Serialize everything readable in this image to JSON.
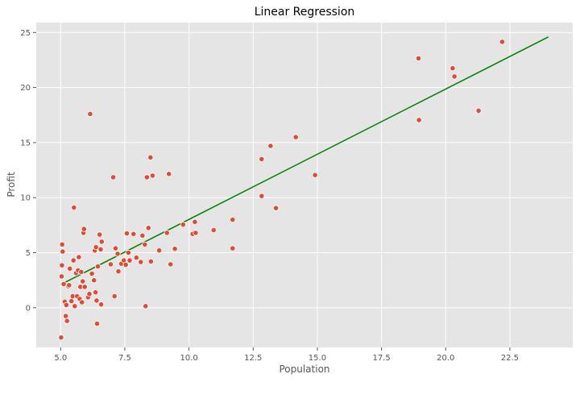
{
  "chart_data": {
    "type": "scatter",
    "title": "Linear Regression",
    "xlabel": "Population",
    "ylabel": "Profit",
    "xlim": [
      4.05,
      24.95
    ],
    "ylim": [
      -3.6,
      25.9
    ],
    "x_ticks": [
      5.0,
      7.5,
      10.0,
      12.5,
      15.0,
      17.5,
      20.0,
      22.5
    ],
    "x_tick_labels": [
      "5.0",
      "7.5",
      "10.0",
      "12.5",
      "15.0",
      "17.5",
      "20.0",
      "22.5"
    ],
    "y_ticks": [
      0,
      5,
      10,
      15,
      20,
      25
    ],
    "y_tick_labels": [
      "0",
      "5",
      "10",
      "15",
      "20",
      "25"
    ],
    "grid": true,
    "style": {
      "plot_background": "#e5e5e5",
      "grid_color": "#ffffff",
      "point_color": "#e24a33",
      "point_edge_color": "#ffffff",
      "line_color": "#008000"
    },
    "series": [
      {
        "type": "scatter",
        "points": [
          [
            5.02,
            -2.7
          ],
          [
            5.04,
            2.85
          ],
          [
            5.05,
            3.85
          ],
          [
            5.06,
            5.75
          ],
          [
            5.08,
            5.1
          ],
          [
            5.12,
            2.15
          ],
          [
            5.16,
            0.55
          ],
          [
            5.2,
            -0.75
          ],
          [
            5.22,
            0.25
          ],
          [
            5.25,
            -1.2
          ],
          [
            5.3,
            1.95
          ],
          [
            5.33,
            2.05
          ],
          [
            5.36,
            3.55
          ],
          [
            5.42,
            0.6
          ],
          [
            5.47,
            1.05
          ],
          [
            5.5,
            4.3
          ],
          [
            5.52,
            9.1
          ],
          [
            5.55,
            0.15
          ],
          [
            5.6,
            3.15
          ],
          [
            5.64,
            1.05
          ],
          [
            5.68,
            3.4
          ],
          [
            5.71,
            4.6
          ],
          [
            5.74,
            0.8
          ],
          [
            5.77,
            1.9
          ],
          [
            5.8,
            3.25
          ],
          [
            5.83,
            0.5
          ],
          [
            5.86,
            2.4
          ],
          [
            5.89,
            6.8
          ],
          [
            5.91,
            7.15
          ],
          [
            5.94,
            1.9
          ],
          [
            6.07,
            0.95
          ],
          [
            6.12,
            1.25
          ],
          [
            6.15,
            17.6
          ],
          [
            6.22,
            3.1
          ],
          [
            6.3,
            2.5
          ],
          [
            6.33,
            5.2
          ],
          [
            6.36,
            1.4
          ],
          [
            6.38,
            5.5
          ],
          [
            6.4,
            0.65
          ],
          [
            6.42,
            -1.45
          ],
          [
            6.45,
            3.75
          ],
          [
            6.52,
            6.65
          ],
          [
            6.56,
            5.3
          ],
          [
            6.58,
            0.3
          ],
          [
            6.6,
            6.0
          ],
          [
            6.95,
            3.95
          ],
          [
            7.05,
            11.85
          ],
          [
            7.1,
            1.05
          ],
          [
            7.14,
            5.4
          ],
          [
            7.22,
            4.9
          ],
          [
            7.25,
            3.3
          ],
          [
            7.36,
            4.0
          ],
          [
            7.46,
            4.3
          ],
          [
            7.54,
            3.9
          ],
          [
            7.58,
            6.75
          ],
          [
            7.64,
            5.0
          ],
          [
            7.69,
            4.3
          ],
          [
            7.84,
            6.7
          ],
          [
            7.95,
            4.55
          ],
          [
            8.12,
            4.15
          ],
          [
            8.19,
            6.55
          ],
          [
            8.28,
            5.75
          ],
          [
            8.31,
            0.15
          ],
          [
            8.36,
            11.85
          ],
          [
            8.42,
            7.25
          ],
          [
            8.5,
            13.65
          ],
          [
            8.52,
            4.2
          ],
          [
            8.58,
            12.0
          ],
          [
            8.84,
            5.2
          ],
          [
            9.14,
            6.8
          ],
          [
            9.22,
            12.15
          ],
          [
            9.28,
            3.95
          ],
          [
            9.45,
            5.35
          ],
          [
            9.77,
            7.55
          ],
          [
            10.14,
            6.7
          ],
          [
            10.23,
            7.8
          ],
          [
            10.26,
            6.8
          ],
          [
            10.96,
            7.05
          ],
          [
            11.7,
            8.0
          ],
          [
            11.7,
            5.4
          ],
          [
            12.83,
            13.5
          ],
          [
            12.83,
            10.15
          ],
          [
            13.18,
            14.7
          ],
          [
            13.39,
            9.05
          ],
          [
            14.16,
            15.5
          ],
          [
            14.91,
            12.05
          ],
          [
            18.94,
            22.65
          ],
          [
            18.96,
            17.05
          ],
          [
            20.27,
            21.75
          ],
          [
            20.34,
            21.0
          ],
          [
            21.28,
            17.9
          ],
          [
            22.2,
            24.15
          ]
        ]
      },
      {
        "type": "line",
        "points": [
          [
            5.0,
            2.1
          ],
          [
            24.0,
            24.6
          ]
        ]
      }
    ]
  }
}
